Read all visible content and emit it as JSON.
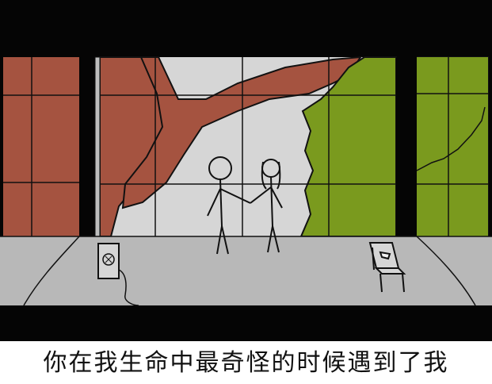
{
  "caption": "你在我生命中最奇怪的时候遇到了我",
  "colors": {
    "frame": "#050505",
    "brick": "#a55340",
    "foliage": "#7a9a1e",
    "sky": "#d6d6d6",
    "floor": "#b8b8b8",
    "line": "#111111"
  },
  "scene": {
    "figures": [
      "stick-figure-man",
      "stick-figure-woman"
    ],
    "props": [
      "speaker-icon",
      "tissue-box-table"
    ]
  }
}
